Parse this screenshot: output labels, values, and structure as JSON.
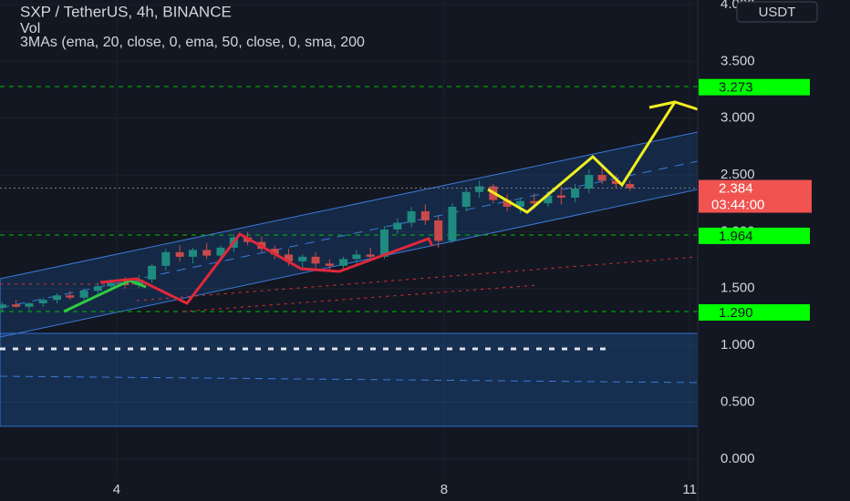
{
  "chart_data": {
    "type": "candlestick",
    "title": "SXP / TetherUS, 4h, BINANCE",
    "indicators": [
      "Vol",
      "3MAs (ema, 20, close, 0, ema, 50, close, 0, sma, 200"
    ],
    "currency": "USDT",
    "x": [
      2.6,
      2.77,
      2.93,
      3.1,
      3.27,
      3.43,
      3.6,
      3.77,
      3.93,
      4.1,
      4.27,
      4.43,
      4.6,
      4.77,
      4.93,
      5.1,
      5.27,
      5.43,
      5.6,
      5.77,
      5.93,
      6.1,
      6.27,
      6.43,
      6.6,
      6.77,
      6.93,
      7.1,
      7.27,
      7.43,
      7.6,
      7.77,
      7.93,
      8.1,
      8.27,
      8.43,
      8.6,
      8.77,
      8.93,
      9.1,
      9.27,
      9.43,
      9.6,
      9.77,
      9.93,
      10.1,
      10.27
    ],
    "open": [
      1.33,
      1.36,
      1.34,
      1.37,
      1.4,
      1.44,
      1.42,
      1.48,
      1.52,
      1.55,
      1.53,
      1.58,
      1.7,
      1.82,
      1.78,
      1.84,
      1.79,
      1.86,
      1.95,
      1.91,
      1.85,
      1.8,
      1.74,
      1.78,
      1.72,
      1.7,
      1.76,
      1.8,
      1.78,
      2.02,
      2.08,
      2.18,
      2.1,
      1.92,
      2.22,
      2.35,
      2.4,
      2.28,
      2.22,
      2.27,
      2.25,
      2.32,
      2.3,
      2.38,
      2.5,
      2.45,
      2.42
    ],
    "high": [
      1.38,
      1.4,
      1.38,
      1.42,
      1.46,
      1.48,
      1.5,
      1.55,
      1.58,
      1.6,
      1.62,
      1.72,
      1.85,
      1.88,
      1.86,
      1.9,
      1.88,
      1.98,
      2.0,
      1.96,
      1.88,
      1.85,
      1.8,
      1.82,
      1.76,
      1.78,
      1.84,
      1.86,
      2.05,
      2.12,
      2.22,
      2.24,
      2.14,
      2.25,
      2.38,
      2.45,
      2.42,
      2.33,
      2.3,
      2.34,
      2.36,
      2.4,
      2.42,
      2.55,
      2.6,
      2.5,
      2.45
    ],
    "low": [
      1.3,
      1.33,
      1.31,
      1.34,
      1.37,
      1.4,
      1.4,
      1.45,
      1.48,
      1.5,
      1.5,
      1.55,
      1.66,
      1.74,
      1.72,
      1.76,
      1.75,
      1.82,
      1.88,
      1.82,
      1.76,
      1.7,
      1.66,
      1.68,
      1.65,
      1.66,
      1.72,
      1.74,
      1.76,
      1.98,
      2.04,
      2.06,
      1.86,
      1.9,
      2.18,
      2.3,
      2.25,
      2.18,
      2.16,
      2.2,
      2.22,
      2.24,
      2.26,
      2.34,
      2.42,
      2.38,
      2.36
    ],
    "close": [
      1.36,
      1.34,
      1.37,
      1.4,
      1.44,
      1.42,
      1.48,
      1.52,
      1.55,
      1.53,
      1.58,
      1.7,
      1.82,
      1.78,
      1.84,
      1.79,
      1.86,
      1.95,
      1.91,
      1.85,
      1.8,
      1.74,
      1.78,
      1.72,
      1.7,
      1.76,
      1.8,
      1.78,
      2.02,
      2.08,
      2.18,
      2.1,
      1.92,
      2.22,
      2.35,
      2.4,
      2.28,
      2.22,
      2.27,
      2.25,
      2.32,
      2.3,
      2.38,
      2.5,
      2.45,
      2.42,
      2.384
    ],
    "up_color": "#1f8a80",
    "down_color": "#c94a4a",
    "xlim": [
      2.574,
      11.098
    ],
    "xticks": [
      4,
      8,
      11
    ],
    "ylim": [
      -0.37,
      4.04
    ],
    "yticks": [
      {
        "value": 0,
        "label": "0.000"
      },
      {
        "value": 0.5,
        "label": "0.500"
      },
      {
        "value": 1,
        "label": "1.000"
      },
      {
        "value": 1.5,
        "label": "1.500"
      },
      {
        "value": 2,
        "label": "2.000"
      },
      {
        "value": 2.5,
        "label": "2.500"
      },
      {
        "value": 3,
        "label": "3.000"
      },
      {
        "value": 3.5,
        "label": "3.500"
      },
      {
        "value": 4,
        "label": "4.000"
      }
    ],
    "grid": true,
    "price_tags": [
      {
        "value": 3.273,
        "color": "#00ff00"
      },
      {
        "value": 2.384,
        "color": "#f05350"
      },
      {
        "value": 1.964,
        "color": "#00ff00"
      },
      {
        "value": {
          "value": 1.29,
          "label": "1.290"
        },
        "color": "#00ff00"
      }
    ],
    "countdown": "03:44:00"
  }
}
